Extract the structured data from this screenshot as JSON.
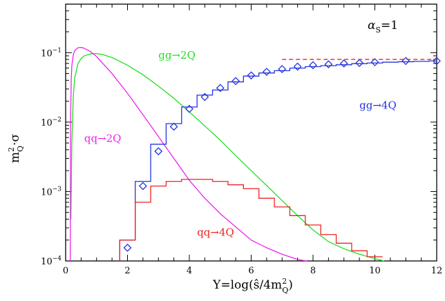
{
  "chart_data": {
    "type": "line",
    "xlabel_main": "Y=log(",
    "xlabel_hat": "ŝ",
    "xlabel_rest": "/4m",
    "xlabel_sup": "2",
    "xlabel_sub": "Q",
    "xlabel_close": ")",
    "ylabel_main": "m",
    "ylabel_sup": "2",
    "ylabel_sub": "Q",
    "ylabel_rest": "·σ",
    "alpha_label": "α",
    "alpha_sub": "S",
    "alpha_value": "=1",
    "xlim": [
      0,
      12
    ],
    "ylim": [
      0.0001,
      0.5
    ],
    "yscale": "log",
    "x_ticks": [
      0,
      2,
      4,
      6,
      8,
      10,
      12
    ],
    "x_tick_labels": [
      "0",
      "2",
      "4",
      "6",
      "8",
      "10",
      "12"
    ],
    "y_ticks": [
      0.0001,
      0.001,
      0.01,
      0.1
    ],
    "y_tick_labels": [
      {
        "base": "10",
        "exp": "−4"
      },
      {
        "base": "10",
        "exp": "−3"
      },
      {
        "base": "10",
        "exp": "−2"
      },
      {
        "base": "10",
        "exp": "−1"
      }
    ],
    "annotations": [
      {
        "key": "gg2Q",
        "text": "gg→2Q",
        "color": "#22dd22",
        "x": 3.0,
        "y": 0.082
      },
      {
        "key": "qq2Q",
        "text": "qq→2Q",
        "color": "#ee22ee",
        "x": 0.6,
        "y": 0.0052
      },
      {
        "key": "gg4Q",
        "text": "gg→4Q",
        "color": "#2233dd",
        "x": 9.5,
        "y": 0.0155
      },
      {
        "key": "qq4Q",
        "text": "qq→4Q",
        "color": "#ee2222",
        "x": 4.25,
        "y": 0.00023
      }
    ],
    "series": [
      {
        "key": "gg2Q",
        "style": "curve",
        "color": "#22dd22",
        "x": [
          0.17,
          0.2,
          0.25,
          0.3,
          0.4,
          0.5,
          0.6,
          0.8,
          1.0,
          1.2,
          1.5,
          2.0,
          2.5,
          3.0,
          3.5,
          4.0,
          4.5,
          5.0,
          5.5,
          6.0,
          6.5,
          7.0,
          7.5,
          8.0,
          8.5,
          9.0,
          9.5,
          10.0,
          10.3
        ],
        "y": [
          0.0004,
          0.005,
          0.025,
          0.045,
          0.07,
          0.082,
          0.09,
          0.096,
          0.097,
          0.094,
          0.085,
          0.066,
          0.048,
          0.033,
          0.022,
          0.014,
          0.0088,
          0.0055,
          0.0033,
          0.002,
          0.00122,
          0.00074,
          0.00045,
          0.00028,
          0.00019,
          0.00015,
          0.000125,
          0.000108,
          0.0001
        ]
      },
      {
        "key": "qq2Q",
        "style": "curve",
        "color": "#ee22ee",
        "x": [
          0.15,
          0.16,
          0.18,
          0.2,
          0.25,
          0.3,
          0.4,
          0.5,
          0.6,
          0.8,
          1.0,
          1.5,
          2.0,
          2.5,
          3.0,
          3.5,
          4.0,
          4.5,
          5.0,
          5.5,
          6.0,
          6.5,
          7.0,
          7.5,
          7.8
        ],
        "y": [
          0.0001,
          0.01,
          0.04,
          0.065,
          0.095,
          0.108,
          0.118,
          0.119,
          0.116,
          0.104,
          0.088,
          0.05,
          0.026,
          0.0128,
          0.0062,
          0.003,
          0.00145,
          0.0008,
          0.00048,
          0.00031,
          0.0002,
          0.000155,
          0.000125,
          0.000105,
          0.0001
        ]
      },
      {
        "key": "gg4Q",
        "style": "step",
        "color": "#2233dd",
        "edges": [
          1.75,
          2.25,
          2.75,
          3.25,
          3.75,
          4.25,
          4.75,
          5.25,
          5.75,
          6.25,
          6.75,
          7.25,
          7.75,
          8.25,
          8.75,
          9.25,
          9.75,
          10.25,
          10.75,
          11.25,
          11.75,
          12.0
        ],
        "values": [
          0.0002,
          0.0014,
          0.0048,
          0.0095,
          0.0165,
          0.0245,
          0.029,
          0.038,
          0.046,
          0.051,
          0.055,
          0.06,
          0.063,
          0.065,
          0.067,
          0.0695,
          0.071,
          0.073,
          0.074,
          0.075,
          0.076
        ]
      },
      {
        "key": "qq4Q",
        "style": "step",
        "color": "#ee2222",
        "edges": [
          1.75,
          2.25,
          2.75,
          3.25,
          3.75,
          4.25,
          4.75,
          5.25,
          5.75,
          6.25,
          6.75,
          7.25,
          7.75,
          8.25,
          8.75,
          9.25,
          9.75,
          10.25
        ],
        "values": [
          0.0002,
          0.0007,
          0.0012,
          0.0014,
          0.0015,
          0.0015,
          0.0014,
          0.00125,
          0.0011,
          0.0008,
          0.0006,
          0.00045,
          0.00033,
          0.00024,
          0.00018,
          0.00014,
          0.000115
        ]
      },
      {
        "key": "gg4Q_points",
        "style": "diamonds",
        "color": "#2233dd",
        "x": [
          2.0,
          2.5,
          3.0,
          3.5,
          4.0,
          4.5,
          5.0,
          5.5,
          6.0,
          6.5,
          7.0,
          7.5,
          8.0,
          8.5,
          9.0,
          9.5,
          10.0,
          11.0,
          12.0
        ],
        "y": [
          0.000155,
          0.0012,
          0.0038,
          0.0086,
          0.0155,
          0.023,
          0.031,
          0.039,
          0.047,
          0.053,
          0.058,
          0.063,
          0.066,
          0.068,
          0.07,
          0.071,
          0.073,
          0.076,
          0.076
        ]
      },
      {
        "key": "asymptote",
        "style": "dashed",
        "color": "#ee2222",
        "x": [
          7.0,
          12.0
        ],
        "y": [
          0.08,
          0.08
        ]
      }
    ]
  }
}
